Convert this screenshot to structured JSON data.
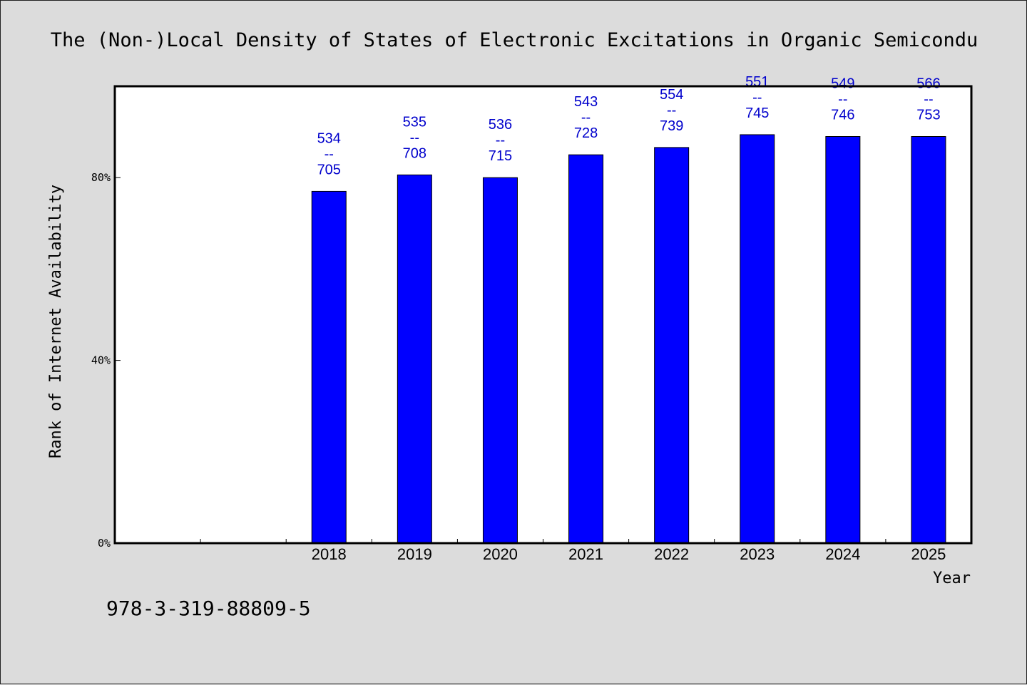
{
  "chart_data": {
    "type": "bar",
    "title": "The (Non-)Local Density of States of Electronic Excitations in Organic Semicondu",
    "xlabel": "Year",
    "ylabel": "Rank of Internet Availability",
    "footer": "978-3-319-88809-5",
    "categories": [
      "",
      "",
      "2018",
      "2019",
      "2020",
      "2021",
      "2022",
      "2023",
      "2024",
      "2025"
    ],
    "values": [
      null,
      null,
      77,
      80.6,
      80,
      85,
      86.6,
      89.4,
      89,
      89
    ],
    "data_labels": [
      [
        "",
        "",
        ""
      ],
      [
        "",
        "",
        ""
      ],
      [
        "534",
        "--",
        "705"
      ],
      [
        "535",
        "--",
        "708"
      ],
      [
        "536",
        "--",
        "715"
      ],
      [
        "543",
        "--",
        "728"
      ],
      [
        "554",
        "--",
        "739"
      ],
      [
        "551",
        "--",
        "745"
      ],
      [
        "549",
        "--",
        "746"
      ],
      [
        "566",
        "--",
        "753"
      ]
    ],
    "ylim": [
      0,
      100
    ],
    "yticks": [
      0,
      40,
      80
    ],
    "ytick_labels": [
      "0%",
      "40%",
      "80%"
    ],
    "bar_color": "#0000ff",
    "label_color": "#0000cc",
    "grid": false,
    "legend": "none"
  }
}
